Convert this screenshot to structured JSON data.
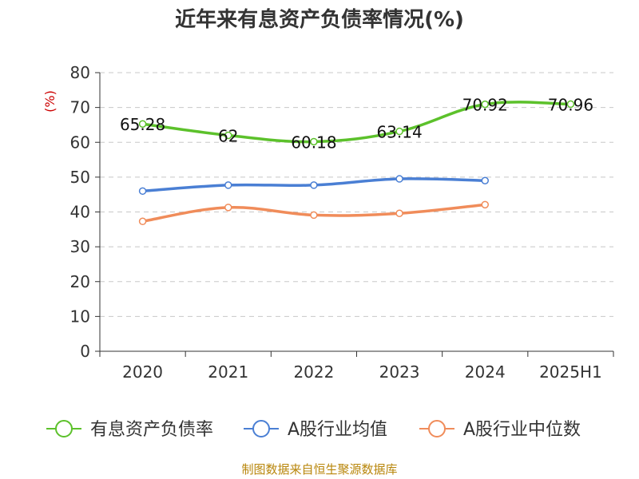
{
  "chart_data": {
    "type": "line",
    "title": "近年来有息资产负债率情况(%)",
    "ylabel": "(%)",
    "xlabel": "",
    "categories": [
      "2020",
      "2021",
      "2022",
      "2023",
      "2024",
      "2025H1"
    ],
    "ylim": [
      0,
      80
    ],
    "yticks": [
      0,
      10,
      20,
      30,
      40,
      50,
      60,
      70,
      80
    ],
    "grid": true,
    "legend_position": "bottom",
    "series": [
      {
        "name": "有息资产负债率",
        "color": "#5cc12b",
        "values": [
          65.28,
          62,
          60.18,
          63.14,
          70.92,
          70.96
        ],
        "labels": [
          "65.28",
          "62",
          "60.18",
          "63.14",
          "70.92",
          "70.96"
        ]
      },
      {
        "name": "A股行业均值",
        "color": "#4a7fd4",
        "values": [
          46.0,
          47.7,
          47.7,
          49.5,
          49.0,
          null
        ]
      },
      {
        "name": "A股行业中位数",
        "color": "#f08c5a",
        "values": [
          37.3,
          41.3,
          39.1,
          39.6,
          42.1,
          null
        ]
      }
    ]
  },
  "source": "制图数据来自恒生聚源数据库"
}
